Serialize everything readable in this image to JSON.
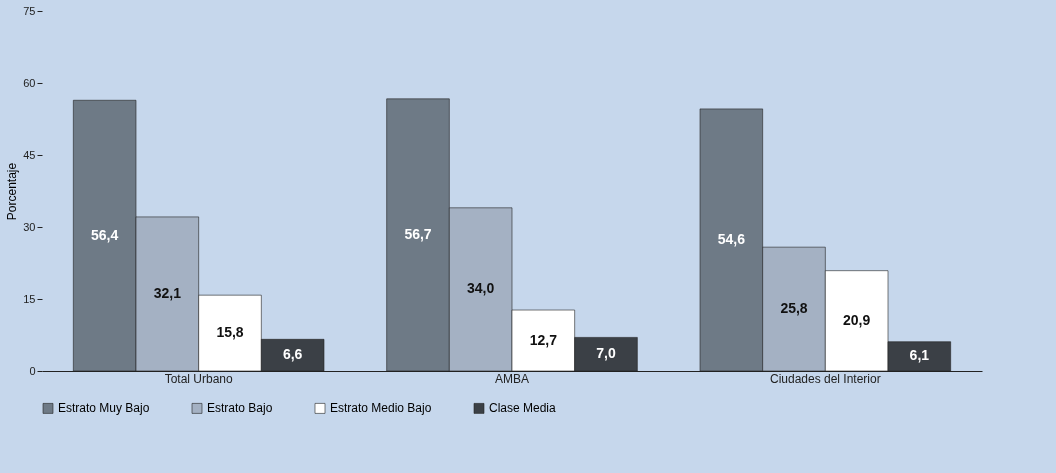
{
  "chart_data": {
    "type": "bar",
    "ylabel": "Porcentaje",
    "categories": [
      "Total Urbano",
      "AMBA",
      "Ciudades del Interior"
    ],
    "series": [
      {
        "name": "Estrato Muy Bajo",
        "color": "#6e7a86",
        "values": [
          56.4,
          56.7,
          54.6
        ],
        "value_labels": [
          "56,4",
          "56,7",
          "54,6"
        ]
      },
      {
        "name": "Estrato Bajo",
        "color": "#a4b1c3",
        "values": [
          32.1,
          34.0,
          25.8
        ],
        "value_labels": [
          "32,1",
          "34,0",
          "25,8"
        ]
      },
      {
        "name": "Estrato Medio Bajo",
        "color": "#ffffff",
        "values": [
          15.8,
          12.7,
          20.9
        ],
        "value_labels": [
          "15,8",
          "12,7",
          "20,9"
        ]
      },
      {
        "name": "Clase Media",
        "color": "#3b4046",
        "values": [
          6.6,
          7.0,
          6.1
        ],
        "value_labels": [
          "6,6",
          "7,0",
          "6,1"
        ]
      }
    ],
    "ylim": [
      0,
      75
    ],
    "yticks": [
      0,
      15,
      30,
      45,
      60,
      75
    ],
    "grid": false,
    "legend": "bottom"
  }
}
